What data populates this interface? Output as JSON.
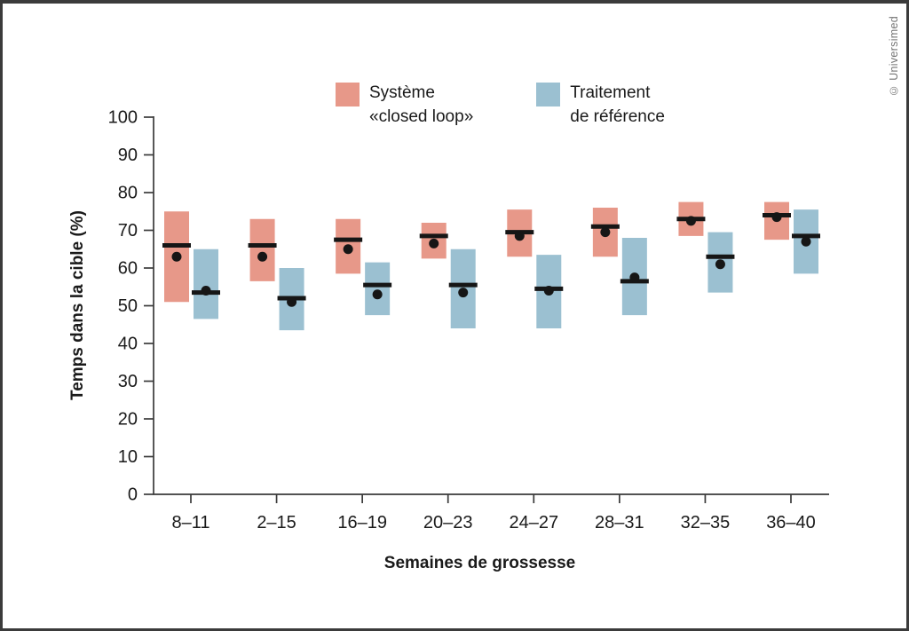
{
  "copyright": "© Universimed",
  "legend": [
    {
      "line1": "Système",
      "line2": "«closed loop»"
    },
    {
      "line1": "Traitement",
      "line2": "de référence"
    }
  ],
  "colors": {
    "closed_loop": "#E79889",
    "reference": "#9BC0D1",
    "axis": "#3a3a3a",
    "marker": "#161616",
    "text": "#1a1a1a"
  },
  "chart_data": {
    "type": "floating-bar",
    "title": "",
    "xlabel": "Semaines de grossesse",
    "ylabel": "Temps dans la cible (%)",
    "ylim": [
      0,
      100
    ],
    "yticks": [
      0,
      10,
      20,
      30,
      40,
      50,
      60,
      70,
      80,
      90,
      100
    ],
    "grid": false,
    "legend_position": "top",
    "categories": [
      "8–11",
      "2–15",
      "16–19",
      "20–23",
      "24–27",
      "28–31",
      "32–35",
      "36–40"
    ],
    "series": [
      {
        "name": "Système «closed loop»",
        "color": "#E79889",
        "range_low": [
          51,
          56.5,
          58.5,
          62.5,
          63,
          63,
          68.5,
          67.5
        ],
        "range_high": [
          75,
          73,
          73,
          72,
          75.5,
          76,
          77.5,
          77.5
        ],
        "median": [
          66,
          66,
          67.5,
          68.5,
          69.5,
          71,
          73,
          74
        ],
        "mean_dot": [
          63,
          63,
          65,
          66.5,
          68.5,
          69.5,
          72.5,
          73.5
        ]
      },
      {
        "name": "Traitement de référence",
        "color": "#9BC0D1",
        "range_low": [
          46.5,
          43.5,
          47.5,
          44,
          44,
          47.5,
          53.5,
          58.5
        ],
        "range_high": [
          65,
          60,
          61.5,
          65,
          63.5,
          68,
          69.5,
          75.5
        ],
        "median": [
          53.5,
          52,
          55.5,
          55.5,
          54.5,
          56.5,
          63,
          68.5
        ],
        "mean_dot": [
          54,
          51,
          53,
          53.5,
          54,
          57.5,
          61,
          67
        ]
      }
    ]
  }
}
